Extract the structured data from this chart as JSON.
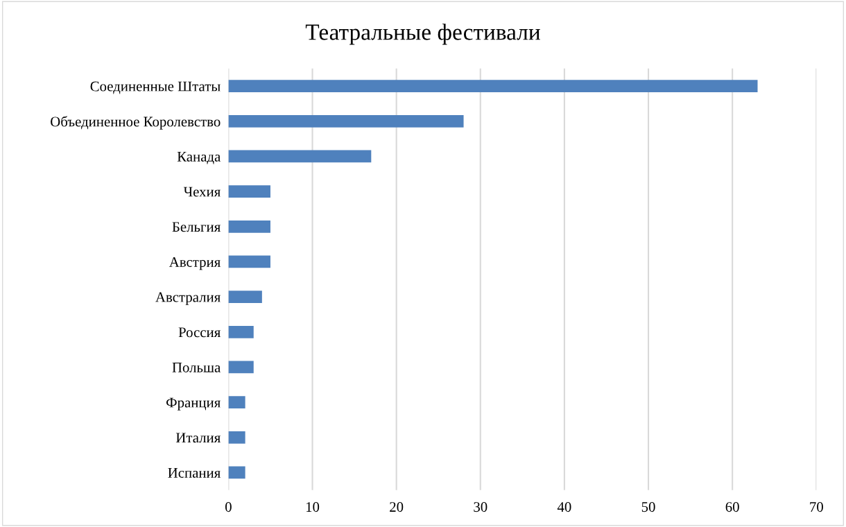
{
  "chart_data": {
    "type": "bar",
    "orientation": "horizontal",
    "title": "Театральные фестивали",
    "categories": [
      "Соединенные Штаты",
      "Объединенное Королевство",
      "Канада",
      "Чехия",
      "Бельгия",
      "Австрия",
      "Австралия",
      "Россия",
      "Польша",
      "Франция",
      "Италия",
      "Испания"
    ],
    "values": [
      63,
      28,
      17,
      5,
      5,
      5,
      4,
      3,
      3,
      2,
      2,
      2
    ],
    "color": "#4f81bd",
    "xlim": [
      0,
      70
    ],
    "xticks": [
      0,
      10,
      20,
      30,
      40,
      50,
      60,
      70
    ],
    "grid": "x"
  }
}
